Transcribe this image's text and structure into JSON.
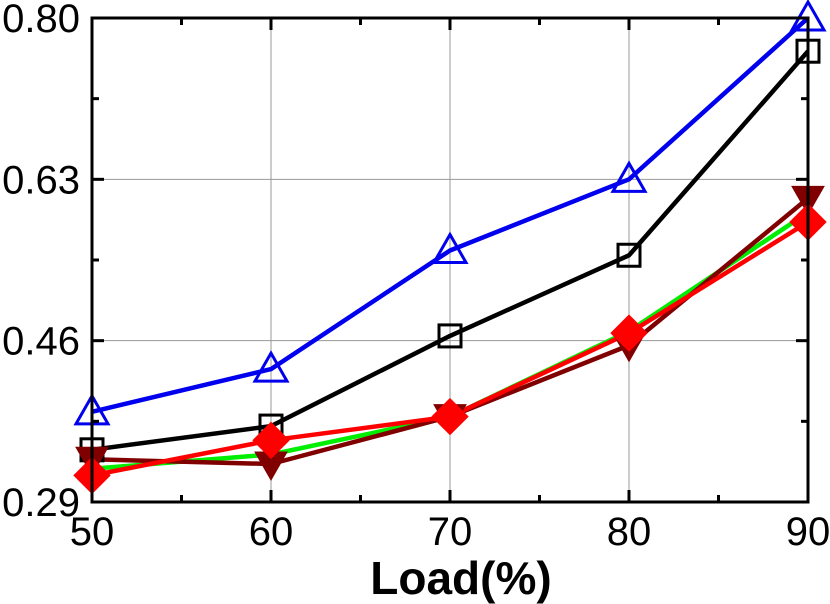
{
  "chart_data": {
    "type": "line",
    "title": "",
    "xlabel": "Load(%)",
    "ylabel": "",
    "x": [
      50,
      60,
      70,
      80,
      90
    ],
    "xlim": [
      50,
      90
    ],
    "ylim": [
      0.29,
      0.8
    ],
    "x_ticks": [
      50,
      60,
      70,
      80,
      90
    ],
    "x_tick_labels": [
      "50",
      "60",
      "70",
      "80",
      "90"
    ],
    "y_ticks": [
      0.29,
      0.46,
      0.63,
      0.8
    ],
    "y_tick_labels": [
      "0.29",
      "0.46",
      "0.63",
      "0.80"
    ],
    "grid": true,
    "legend": "none",
    "series": [
      {
        "color": "#00ee00",
        "marker": "none",
        "values": [
          0.325,
          0.34,
          0.38,
          0.47,
          0.595
        ]
      },
      {
        "color": "#0000ee",
        "marker": "triangle-open",
        "values": [
          0.385,
          0.43,
          0.555,
          0.63,
          0.8
        ]
      },
      {
        "color": "#000000",
        "marker": "square-open",
        "values": [
          0.345,
          0.37,
          0.465,
          0.55,
          0.765
        ]
      },
      {
        "color": "#800000",
        "marker": "triangle-down-filled",
        "values": [
          0.335,
          0.33,
          0.38,
          0.455,
          0.61
        ]
      },
      {
        "color": "#ff0000",
        "marker": "diamond-filled",
        "values": [
          0.318,
          0.355,
          0.38,
          0.468,
          0.585
        ]
      }
    ]
  }
}
